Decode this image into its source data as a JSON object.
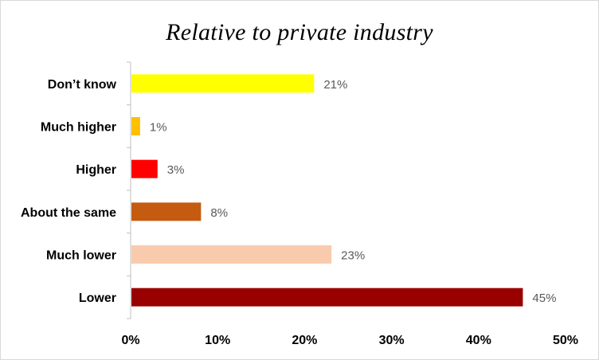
{
  "chart_data": {
    "type": "bar",
    "orientation": "horizontal",
    "title": "Relative to private industry",
    "categories": [
      "Don’t know",
      "Much higher",
      "Higher",
      "About the same",
      "Much lower",
      "Lower"
    ],
    "values": [
      21,
      1,
      3,
      8,
      23,
      45
    ],
    "data_labels": [
      "21%",
      "1%",
      "3%",
      "8%",
      "23%",
      "45%"
    ],
    "colors": [
      "#ffff00",
      "#ffc000",
      "#ff0000",
      "#c55a11",
      "#f8cbad",
      "#990000"
    ],
    "xlim": [
      0,
      50
    ],
    "x_ticks": [
      0,
      10,
      20,
      30,
      40,
      50
    ],
    "x_tick_labels": [
      "0%",
      "10%",
      "20%",
      "30%",
      "40%",
      "50%"
    ],
    "xlabel": "",
    "ylabel": "",
    "grid": false,
    "legend": "none"
  }
}
